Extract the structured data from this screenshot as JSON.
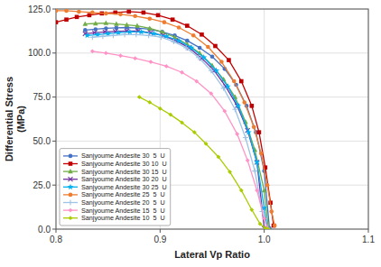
{
  "chart_data": {
    "type": "line",
    "xlabel": "Lateral Vp Ratio",
    "ylabel": "Differential Stress\n(MPa)",
    "xlim": [
      0.8,
      1.1
    ],
    "ylim": [
      0.0,
      125.0
    ],
    "xticks": [
      0.8,
      0.9,
      {
        "value": 1.0,
        "label": "1.0"
      },
      1.1
    ],
    "yticks": [
      {
        "value": 0.0,
        "label": "0.0"
      },
      {
        "value": 25.0,
        "label": "25.0"
      },
      {
        "value": 50.0,
        "label": "50.0"
      },
      {
        "value": 75.0,
        "label": "75.0"
      },
      {
        "value": 100.0,
        "label": "100.0"
      },
      {
        "value": 125.0,
        "label": "125.0"
      }
    ],
    "grid": true,
    "legend": "lower left",
    "series": [
      {
        "name": "Sanjyoume Andesite 30  5  U",
        "color": "#4472C4",
        "marker": "circle",
        "x": [
          0.828,
          0.838,
          0.848,
          0.858,
          0.868,
          0.878,
          0.89,
          0.902,
          0.914,
          0.926,
          0.938,
          0.95,
          0.962,
          0.973,
          0.983,
          0.992,
          1.0,
          1.005
        ],
        "values": [
          113.0,
          113.5,
          114.0,
          114.3,
          114.5,
          114.2,
          113.5,
          112.0,
          110.0,
          107.0,
          103.0,
          98.0,
          91.0,
          82.0,
          70.0,
          55.0,
          33.0,
          0.5
        ]
      },
      {
        "name": "Sanjyoume Andesite 30 10  U",
        "color": "#C00000",
        "marker": "square",
        "x": [
          0.8,
          0.81,
          0.82,
          0.832,
          0.844,
          0.857,
          0.87,
          0.884,
          0.898,
          0.912,
          0.926,
          0.94,
          0.953,
          0.966,
          0.978,
          0.988,
          0.995,
          1.001,
          1.006,
          1.009
        ],
        "values": [
          117.5,
          119.0,
          120.5,
          121.5,
          122.5,
          123.0,
          123.5,
          123.0,
          121.5,
          119.0,
          115.5,
          110.5,
          104.0,
          96.0,
          84.0,
          70.0,
          55.0,
          35.0,
          15.0,
          2.0
        ]
      },
      {
        "name": "Sanjyoume Andesite 30 15  U",
        "color": "#70AD47",
        "marker": "triangle",
        "x": [
          0.828,
          0.838,
          0.848,
          0.858,
          0.868,
          0.878,
          0.89,
          0.902,
          0.914,
          0.926,
          0.938,
          0.95,
          0.961,
          0.972,
          0.982,
          0.991,
          1.0,
          1.004
        ],
        "values": [
          116.5,
          116.8,
          117.0,
          116.5,
          116.0,
          115.5,
          114.0,
          112.0,
          109.0,
          105.0,
          100.0,
          93.0,
          85.0,
          75.0,
          61.0,
          45.0,
          22.0,
          0.5
        ]
      },
      {
        "name": "Sanjyoume Andesite 30 20  U",
        "color": "#7030A0",
        "marker": "x",
        "x": [
          0.828,
          0.837,
          0.847,
          0.857,
          0.868,
          0.879,
          0.891,
          0.903,
          0.915,
          0.928,
          0.94,
          0.952,
          0.963,
          0.974,
          0.984,
          0.993,
          1.0
        ],
        "values": [
          111.0,
          111.5,
          112.0,
          112.3,
          112.5,
          112.5,
          111.5,
          110.0,
          107.0,
          103.0,
          97.0,
          90.0,
          81.0,
          70.0,
          56.0,
          38.0,
          0.5
        ]
      },
      {
        "name": "Sanjyoume Andesite 30 25  U",
        "color": "#00B0F0",
        "marker": "star",
        "x": [
          0.83,
          0.84,
          0.85,
          0.86,
          0.871,
          0.882,
          0.894,
          0.906,
          0.918,
          0.93,
          0.942,
          0.954,
          0.965,
          0.975,
          0.985,
          0.993,
          1.0,
          1.003
        ],
        "values": [
          110.0,
          110.5,
          111.0,
          111.5,
          112.0,
          112.0,
          111.0,
          109.5,
          107.0,
          103.0,
          97.5,
          90.0,
          81.0,
          70.0,
          55.0,
          38.0,
          12.0,
          0.5
        ]
      },
      {
        "name": "Sanjyoume Andesite 25  5  U",
        "color": "#ED7D31",
        "marker": "circle",
        "x": [
          0.8,
          0.81,
          0.822,
          0.835,
          0.848,
          0.862,
          0.876,
          0.89,
          0.904,
          0.918,
          0.932,
          0.946,
          0.959,
          0.971,
          0.981,
          0.99,
          0.997,
          1.003,
          1.007,
          1.01
        ],
        "values": [
          124.0,
          124.0,
          123.5,
          123.0,
          122.5,
          122.0,
          121.0,
          119.5,
          117.5,
          114.5,
          110.0,
          103.5,
          95.0,
          84.0,
          72.0,
          58.0,
          43.0,
          25.0,
          10.0,
          2.0
        ]
      },
      {
        "name": "Sanjyoume Andesite 20  5  U",
        "color": "#9DC3E6",
        "marker": "plus",
        "x": [
          0.835,
          0.845,
          0.855,
          0.866,
          0.877,
          0.889,
          0.901,
          0.913,
          0.925,
          0.937,
          0.949,
          0.961,
          0.972,
          0.982,
          0.991,
          0.998,
          1.003
        ],
        "values": [
          109.0,
          109.5,
          110.0,
          110.5,
          110.5,
          110.0,
          109.0,
          106.5,
          103.0,
          97.5,
          90.0,
          80.0,
          68.0,
          52.0,
          33.0,
          10.0,
          0.5
        ]
      },
      {
        "name": "Sanjyoume Andesite 15  5  U",
        "color": "#FF92C6",
        "marker": "diamond",
        "x": [
          0.835,
          0.848,
          0.862,
          0.876,
          0.891,
          0.906,
          0.921,
          0.935,
          0.949,
          0.962,
          0.974,
          0.984,
          0.993,
          1.0,
          1.003
        ],
        "values": [
          101.0,
          100.0,
          98.5,
          97.0,
          95.0,
          92.5,
          89.0,
          84.0,
          77.0,
          67.0,
          54.0,
          39.0,
          22.0,
          6.0,
          0.5
        ]
      },
      {
        "name": "Sanjyoume Andesite 10  5  U",
        "color": "#AACC00",
        "marker": "diamond",
        "x": [
          0.88,
          0.89,
          0.9,
          0.91,
          0.921,
          0.933,
          0.944,
          0.956,
          0.967,
          0.978,
          0.988,
          0.996,
          1.001,
          1.004
        ],
        "values": [
          75.0,
          72.0,
          68.5,
          65.0,
          60.5,
          55.0,
          48.5,
          41.0,
          32.5,
          22.0,
          11.0,
          3.0,
          0.5,
          0.0
        ]
      }
    ]
  }
}
